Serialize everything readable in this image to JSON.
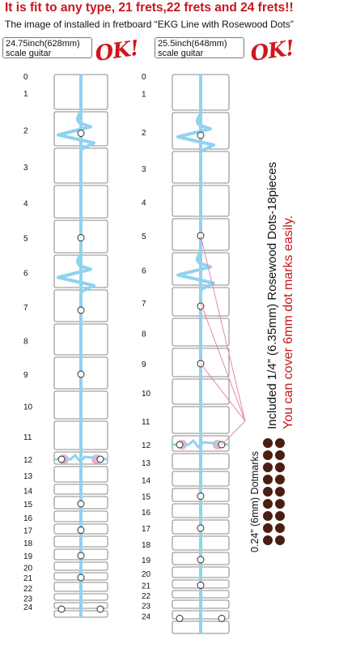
{
  "headline": "It is fit to any type, 21 frets,22 frets and 24 frets!!",
  "subline": "The image of  installed in fretboard “EKG Line with Rosewood Dots”",
  "guitars": [
    {
      "scale_line1": "24.75inch(628mm)",
      "scale_line2": "scale guitar",
      "ok_label": "OK!",
      "fret_numbers": [
        "0",
        "1",
        "2",
        "3",
        "4",
        "5",
        "6",
        "7",
        "8",
        "9",
        "10",
        "11",
        "12",
        "13",
        "14",
        "15",
        "16",
        "17",
        "18",
        "19",
        "20",
        "21",
        "22",
        "23",
        "24"
      ],
      "dot_frets": [
        2,
        5,
        7,
        9,
        15,
        17,
        19,
        21
      ],
      "double_dot_frets": [
        12,
        24
      ]
    },
    {
      "scale_line1": "25.5inch(648mm)",
      "scale_line2": "scale guitar",
      "ok_label": "OK!",
      "fret_numbers": [
        "0",
        "1",
        "2",
        "3",
        "4",
        "5",
        "6",
        "7",
        "8",
        "9",
        "10",
        "11",
        "12",
        "13",
        "14",
        "15",
        "16",
        "17",
        "18",
        "19",
        "20",
        "21",
        "22",
        "23",
        "24"
      ],
      "dot_frets": [
        2,
        5,
        7,
        9,
        15,
        17,
        19,
        21
      ],
      "double_dot_frets": [
        12,
        24
      ]
    }
  ],
  "side_text": {
    "included": "Included 1/4” (6.35mm) Rosewood Dots-18pieces",
    "cover": "You can cover 6mm dot marks easily.",
    "dotmarks": "0.24” (6mm) Dotmarks"
  },
  "rosewood_dots": {
    "count": 18,
    "columns": 2
  },
  "colors": {
    "headline": "#c8161d",
    "ok_mark": "#d0161f",
    "ekg_line": "#8fd3ef",
    "pink_accent": "#e37ba6",
    "rosewood_dot": "#4a1e10",
    "cover_text": "#c8161d"
  }
}
